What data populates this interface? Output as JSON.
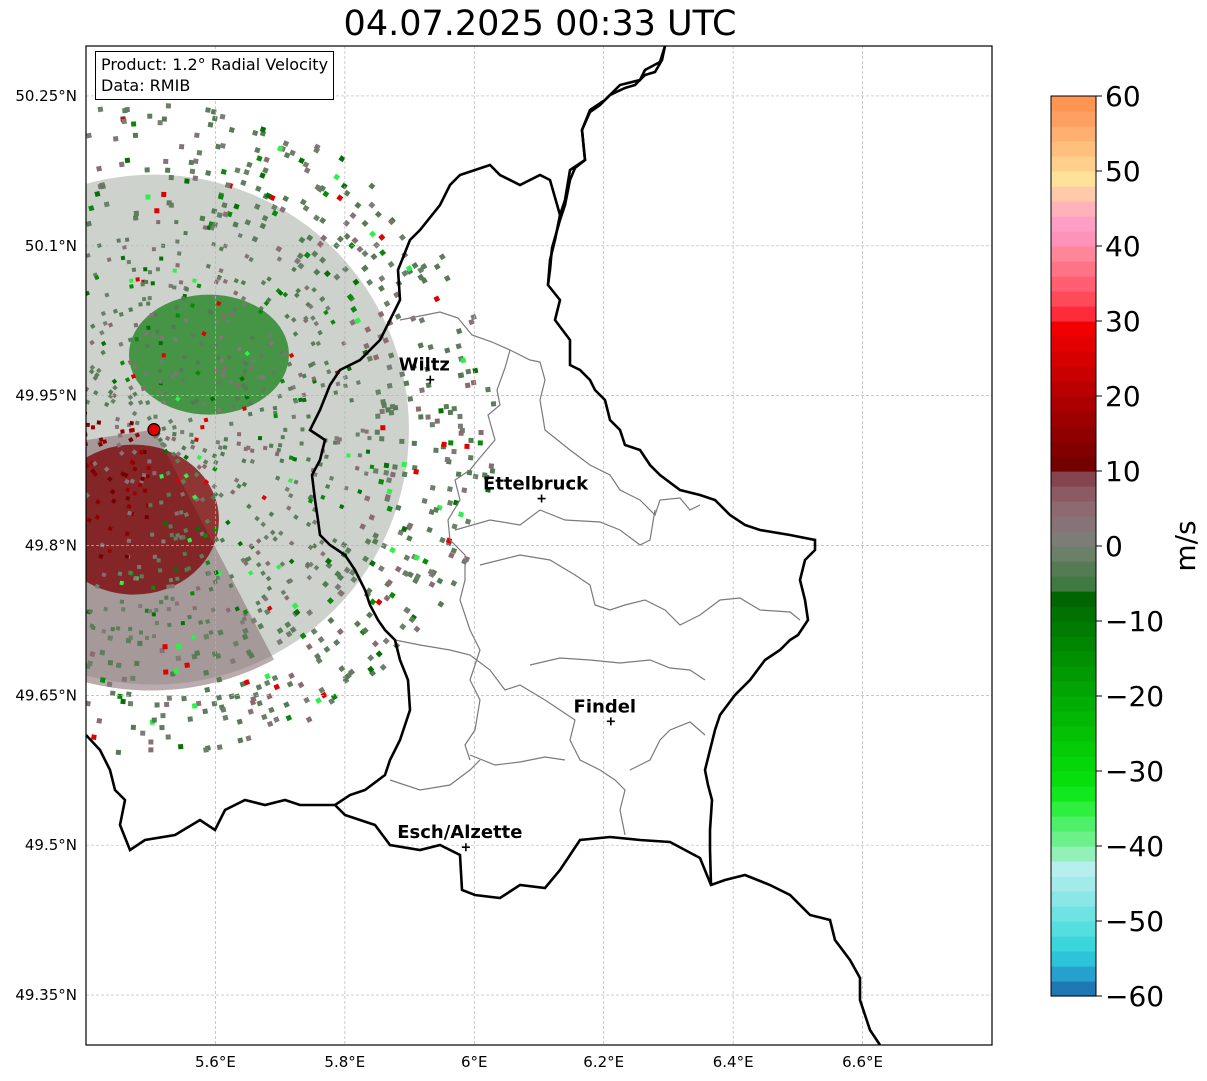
{
  "title": "04.07.2025 00:33 UTC",
  "info": {
    "product": "Product: 1.2° Radial Velocity",
    "data": "Data: RMIB"
  },
  "axes": {
    "lon_range": [
      5.4,
      6.8
    ],
    "lat_range": [
      49.3,
      50.3
    ],
    "x_ticks": [
      "5.6°E",
      "5.8°E",
      "6°E",
      "6.2°E",
      "6.4°E",
      "6.6°E"
    ],
    "y_ticks": [
      "50.25°N",
      "50.1°N",
      "49.95°N",
      "49.8°N",
      "49.65°N",
      "49.5°N",
      "49.35°N"
    ],
    "grid": true
  },
  "radar": {
    "lon": 5.505,
    "lat": 49.916
  },
  "cities": [
    {
      "name": "Wiltz",
      "lon": 5.932,
      "lat": 49.966
    },
    {
      "name": "Ettelbruck",
      "lon": 6.104,
      "lat": 49.847
    },
    {
      "name": "Findel",
      "lon": 6.211,
      "lat": 49.624
    },
    {
      "name": "Esch/Alzette",
      "lon": 5.987,
      "lat": 49.498
    }
  ],
  "colorbar": {
    "label": "m/s",
    "min": -60,
    "max": 60,
    "ticks": [
      "60",
      "50",
      "40",
      "30",
      "20",
      "10",
      "0",
      "−10",
      "−20",
      "−30",
      "−40",
      "−50",
      "−60"
    ],
    "colors": [
      "#1f78b4",
      "#26a0cc",
      "#2ec4d8",
      "#3ad6dc",
      "#55dedf",
      "#6fe2e3",
      "#8ae6e7",
      "#a3eaeb",
      "#b7efef",
      "#93f0b8",
      "#6cf089",
      "#4ef06a",
      "#2eee3e",
      "#12e81e",
      "#06df0c",
      "#05d609",
      "#04cc07",
      "#03c206",
      "#03b805",
      "#03ae04",
      "#02a404",
      "#029a03",
      "#029003",
      "#018602",
      "#017c02",
      "#017202",
      "#016601",
      "#3f7a43",
      "#547b54",
      "#6a8068",
      "#7d7c76",
      "#877377",
      "#8c6a70",
      "#8b5a62",
      "#844450",
      "#740000",
      "#820000",
      "#900000",
      "#9e0000",
      "#ac0000",
      "#ba0000",
      "#c80000",
      "#d60000",
      "#e40000",
      "#f20000",
      "#ff2a3a",
      "#ff4a5a",
      "#ff5f70",
      "#ff7387",
      "#ff8599",
      "#ff92b8",
      "#ff9fc5",
      "#ffb2ba",
      "#ffcaaa",
      "#ffe29a",
      "#ffd08c",
      "#ffc07e",
      "#ffb070",
      "#ffa062",
      "#ff9552"
    ]
  }
}
